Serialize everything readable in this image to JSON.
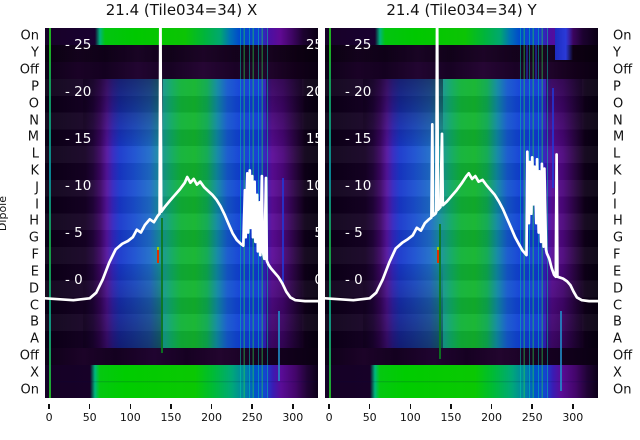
{
  "colors": {
    "green": "#00c800",
    "teal": "#00a878",
    "blue": "#1040d0",
    "purple": "#5c0c98",
    "background_dark": "#10001c",
    "curve": "#ffffff",
    "rfi_red": "#e03000"
  },
  "chart_data": {
    "type": "heatmap",
    "description": "Two per-dipole spectrum waterfalls (X and Y polarization) with overlaid white median spectrum line; inner white tick labels give line scale",
    "ylabel": "Dipole",
    "y_rows": [
      "On",
      "Y",
      "Off",
      "P",
      "O",
      "N",
      "M",
      "L",
      "K",
      "J",
      "I",
      "H",
      "G",
      "F",
      "E",
      "D",
      "C",
      "B",
      "A",
      "Off",
      "X",
      "On"
    ],
    "inner_y_ticks": [
      25,
      20,
      15,
      10,
      5,
      0
    ],
    "x_ticks": [
      0,
      50,
      100,
      150,
      200,
      250,
      300
    ],
    "x_range": [
      -5,
      331
    ],
    "panels": [
      {
        "title": "21.4 (Tile034=34) X",
        "polarization": "X",
        "spike_x": 137,
        "line": {
          "name": "median spectrum X",
          "color": "#ffffff",
          "points": [
            [
              -5,
              -2
            ],
            [
              30,
              -2.2
            ],
            [
              50,
              -2
            ],
            [
              58,
              -1.4
            ],
            [
              66,
              0
            ],
            [
              74,
              1.8
            ],
            [
              82,
              3.2
            ],
            [
              90,
              3.8
            ],
            [
              97,
              4.1
            ],
            [
              103,
              4.5
            ],
            [
              108,
              5.3
            ],
            [
              113,
              5
            ],
            [
              118,
              5.8
            ],
            [
              124,
              6.4
            ],
            [
              129,
              6.1
            ],
            [
              134,
              6.8
            ],
            [
              136,
              7
            ],
            [
              137,
              30
            ],
            [
              138,
              7.2
            ],
            [
              143,
              7.8
            ],
            [
              149,
              8.4
            ],
            [
              155,
              9
            ],
            [
              161,
              9.6
            ],
            [
              167,
              10.3
            ],
            [
              170,
              10.9
            ],
            [
              174,
              10.3
            ],
            [
              178,
              10.7
            ],
            [
              182,
              10.1
            ],
            [
              186,
              10.4
            ],
            [
              191,
              9.8
            ],
            [
              196,
              9.4
            ],
            [
              201,
              9
            ],
            [
              206,
              8.5
            ],
            [
              211,
              7.8
            ],
            [
              216,
              6.9
            ],
            [
              221,
              5.9
            ],
            [
              226,
              4.9
            ],
            [
              231,
              4.2
            ],
            [
              236,
              3.8
            ],
            [
              239,
              3.6
            ],
            [
              241,
              9.5
            ],
            [
              242,
              4.5
            ],
            [
              244,
              11.3
            ],
            [
              245,
              5
            ],
            [
              247,
              11.6
            ],
            [
              248,
              5.5
            ],
            [
              250,
              11
            ],
            [
              251,
              4.5
            ],
            [
              253,
              10.4
            ],
            [
              254,
              4
            ],
            [
              256,
              9
            ],
            [
              257,
              3
            ],
            [
              259,
              8.2
            ],
            [
              260,
              2.6
            ],
            [
              262,
              11
            ],
            [
              263,
              3
            ],
            [
              265,
              2.2
            ],
            [
              267,
              10.8
            ],
            [
              268,
              2
            ],
            [
              270,
              1.6
            ],
            [
              273,
              1.2
            ],
            [
              277,
              0.8
            ],
            [
              282,
              0.3
            ],
            [
              287,
              -0.4
            ],
            [
              292,
              -1.3
            ],
            [
              297,
              -1.9
            ],
            [
              303,
              -2.2
            ],
            [
              315,
              -2.3
            ],
            [
              331,
              -2.3
            ]
          ]
        }
      },
      {
        "title": "21.4 (Tile034=34) Y",
        "polarization": "Y",
        "spike_x": 133,
        "line": {
          "name": "median spectrum Y",
          "color": "#ffffff",
          "points": [
            [
              -5,
              -2
            ],
            [
              30,
              -2.2
            ],
            [
              50,
              -2
            ],
            [
              58,
              -1.4
            ],
            [
              66,
              0
            ],
            [
              74,
              1.8
            ],
            [
              82,
              3.3
            ],
            [
              90,
              3.9
            ],
            [
              97,
              4.3
            ],
            [
              103,
              4.7
            ],
            [
              108,
              5.5
            ],
            [
              113,
              5.2
            ],
            [
              118,
              6
            ],
            [
              123,
              6.4
            ],
            [
              126,
              6.6
            ],
            [
              127,
              16.5
            ],
            [
              128,
              6.8
            ],
            [
              131,
              7
            ],
            [
              132,
              7.2
            ],
            [
              133,
              30
            ],
            [
              134,
              7.4
            ],
            [
              137,
              7.7
            ],
            [
              139,
              15.5
            ],
            [
              140,
              7.9
            ],
            [
              145,
              8.3
            ],
            [
              151,
              8.9
            ],
            [
              157,
              9.5
            ],
            [
              163,
              10.2
            ],
            [
              169,
              11
            ],
            [
              172,
              11.3
            ],
            [
              176,
              10.7
            ],
            [
              180,
              11
            ],
            [
              184,
              10.4
            ],
            [
              189,
              10.6
            ],
            [
              194,
              10
            ],
            [
              199,
              9.5
            ],
            [
              204,
              9
            ],
            [
              209,
              8.3
            ],
            [
              214,
              7.5
            ],
            [
              219,
              6.5
            ],
            [
              224,
              5.5
            ],
            [
              229,
              4.5
            ],
            [
              234,
              3.7
            ],
            [
              238,
              3.1
            ],
            [
              241,
              2.8
            ],
            [
              243,
              2.6
            ],
            [
              244,
              13.6
            ],
            [
              246,
              6
            ],
            [
              247,
              12.5
            ],
            [
              249,
              7
            ],
            [
              250,
              13
            ],
            [
              252,
              8
            ],
            [
              253,
              12
            ],
            [
              255,
              6
            ],
            [
              256,
              12.8
            ],
            [
              258,
              5
            ],
            [
              259,
              11.5
            ],
            [
              261,
              4
            ],
            [
              262,
              12.3
            ],
            [
              264,
              3.5
            ],
            [
              265,
              11.8
            ],
            [
              267,
              3.2
            ],
            [
              268,
              2.8
            ],
            [
              271,
              2.2
            ],
            [
              274,
              1.2
            ],
            [
              277,
              0.5
            ],
            [
              279,
              0.3
            ],
            [
              280,
              13.3
            ],
            [
              281,
              0.3
            ],
            [
              288,
              0.1
            ],
            [
              293,
              -0.2
            ],
            [
              297,
              -0.6
            ],
            [
              301,
              -1.3
            ],
            [
              305,
              -1.9
            ],
            [
              311,
              -2.2
            ],
            [
              320,
              -2.3
            ],
            [
              331,
              -2.3
            ]
          ]
        }
      }
    ]
  }
}
